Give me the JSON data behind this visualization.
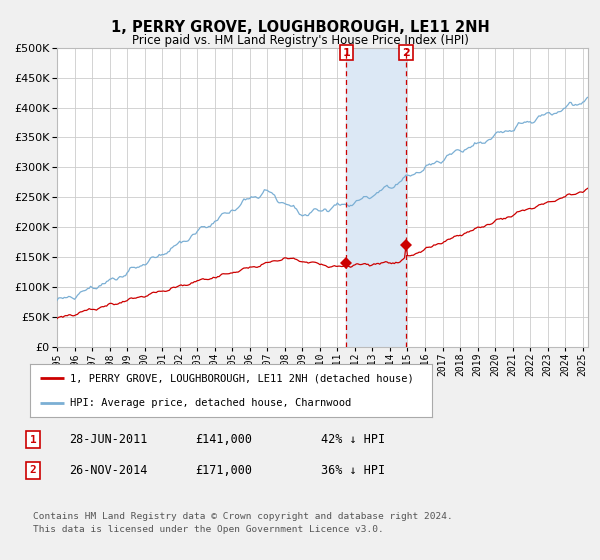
{
  "title": "1, PERRY GROVE, LOUGHBOROUGH, LE11 2NH",
  "subtitle": "Price paid vs. HM Land Registry's House Price Index (HPI)",
  "legend_label_red": "1, PERRY GROVE, LOUGHBOROUGH, LE11 2NH (detached house)",
  "legend_label_blue": "HPI: Average price, detached house, Charnwood",
  "transaction1_date": "28-JUN-2011",
  "transaction1_price": 141000,
  "transaction1_hpi": "42% ↓ HPI",
  "transaction2_date": "26-NOV-2014",
  "transaction2_price": 171000,
  "transaction2_hpi": "36% ↓ HPI",
  "footer": "Contains HM Land Registry data © Crown copyright and database right 2024.\nThis data is licensed under the Open Government Licence v3.0.",
  "x_start_year": 1995,
  "x_end_year": 2025,
  "ylim_max": 500000,
  "background_color": "#f0f0f0",
  "plot_bg_color": "#ffffff",
  "grid_color": "#cccccc",
  "hpi_color": "#7bafd4",
  "price_color": "#cc0000",
  "shade_color": "#dce8f5",
  "vline_color": "#cc0000",
  "label_box_color": "#cc0000"
}
